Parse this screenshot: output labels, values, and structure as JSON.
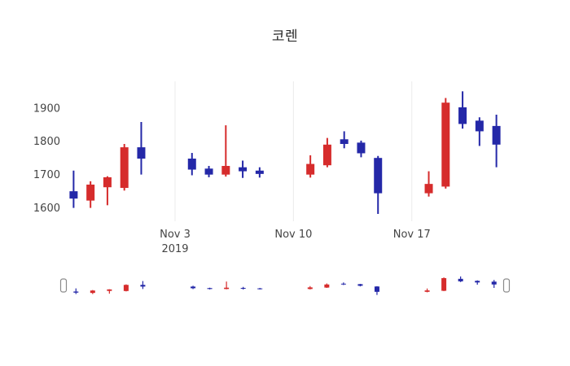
{
  "title": "코렌",
  "chart_data": {
    "type": "candlestick",
    "title": "코렌",
    "up_color": "#d62c2c",
    "down_color": "#2428a8",
    "grid_color": "#ebebeb",
    "text_color": "#444444",
    "background": "#ffffff",
    "ylim": [
      1560,
      1980
    ],
    "xlim": [
      -0.5,
      25.5
    ],
    "yticks": [
      1600,
      1700,
      1800,
      1900
    ],
    "xticks": [
      {
        "day": 6,
        "label": "Nov 3",
        "sublabel": "2019"
      },
      {
        "day": 13,
        "label": "Nov 10",
        "sublabel": ""
      },
      {
        "day": 20,
        "label": "Nov 17",
        "sublabel": ""
      }
    ],
    "legend": "none",
    "grid": "vertical-only",
    "rangeslider": true,
    "candles": [
      {
        "day": 0,
        "open": 1650,
        "high": 1712,
        "low": 1600,
        "close": 1628
      },
      {
        "day": 1,
        "open": 1622,
        "high": 1680,
        "low": 1600,
        "close": 1670
      },
      {
        "day": 2,
        "open": 1662,
        "high": 1695,
        "low": 1608,
        "close": 1692
      },
      {
        "day": 3,
        "open": 1660,
        "high": 1792,
        "low": 1652,
        "close": 1782
      },
      {
        "day": 4,
        "open": 1782,
        "high": 1858,
        "low": 1700,
        "close": 1748
      },
      {
        "day": 7,
        "open": 1748,
        "high": 1765,
        "low": 1698,
        "close": 1715
      },
      {
        "day": 8,
        "open": 1718,
        "high": 1726,
        "low": 1692,
        "close": 1700
      },
      {
        "day": 9,
        "open": 1700,
        "high": 1848,
        "low": 1694,
        "close": 1726
      },
      {
        "day": 10,
        "open": 1722,
        "high": 1742,
        "low": 1690,
        "close": 1710
      },
      {
        "day": 11,
        "open": 1712,
        "high": 1722,
        "low": 1691,
        "close": 1702
      },
      {
        "day": 14,
        "open": 1700,
        "high": 1758,
        "low": 1691,
        "close": 1732
      },
      {
        "day": 15,
        "open": 1728,
        "high": 1810,
        "low": 1722,
        "close": 1790
      },
      {
        "day": 16,
        "open": 1806,
        "high": 1830,
        "low": 1779,
        "close": 1792
      },
      {
        "day": 17,
        "open": 1796,
        "high": 1802,
        "low": 1752,
        "close": 1764
      },
      {
        "day": 18,
        "open": 1750,
        "high": 1756,
        "low": 1582,
        "close": 1644
      },
      {
        "day": 21,
        "open": 1644,
        "high": 1710,
        "low": 1634,
        "close": 1672
      },
      {
        "day": 22,
        "open": 1664,
        "high": 1930,
        "low": 1658,
        "close": 1916
      },
      {
        "day": 23,
        "open": 1902,
        "high": 1950,
        "low": 1838,
        "close": 1852
      },
      {
        "day": 24,
        "open": 1862,
        "high": 1872,
        "low": 1786,
        "close": 1830
      },
      {
        "day": 25,
        "open": 1846,
        "high": 1880,
        "low": 1722,
        "close": 1790
      }
    ]
  }
}
